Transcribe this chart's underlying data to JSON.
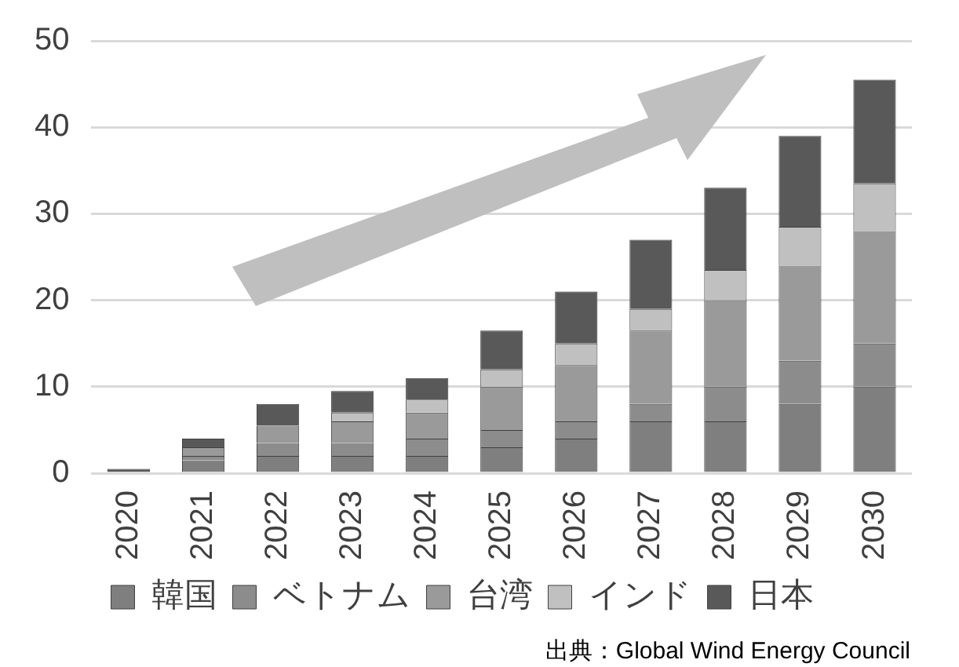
{
  "chart_data": {
    "type": "bar",
    "stacked": true,
    "categories": [
      "2020",
      "2021",
      "2022",
      "2023",
      "2024",
      "2025",
      "2026",
      "2027",
      "2028",
      "2029",
      "2030"
    ],
    "series": [
      {
        "name": "韓国",
        "color": "#7f7f7f",
        "values": [
          0,
          1.5,
          2,
          2,
          2,
          3,
          4,
          6,
          6,
          8,
          10
        ]
      },
      {
        "name": "ベトナム",
        "color": "#8c8c8c",
        "values": [
          0,
          0.5,
          1.5,
          1.5,
          2,
          2,
          2,
          2,
          4,
          5,
          5
        ]
      },
      {
        "name": "台湾",
        "color": "#9a9a9a",
        "values": [
          0,
          1,
          2,
          2.5,
          3,
          5,
          6.5,
          8.5,
          10,
          11,
          13
        ]
      },
      {
        "name": "インド",
        "color": "#c0c0c0",
        "values": [
          0,
          0,
          0,
          1,
          1.5,
          2,
          2.5,
          2.5,
          3.5,
          4.5,
          5.5
        ]
      },
      {
        "name": "日本",
        "color": "#595959",
        "values": [
          0.5,
          1,
          2.5,
          2.5,
          2.5,
          4.5,
          6,
          8,
          9.5,
          10.5,
          12
        ]
      }
    ],
    "ylim": [
      0,
      50
    ],
    "yticks": [
      0,
      10,
      20,
      30,
      40,
      50
    ],
    "grid": "y",
    "legend": "bottom",
    "annotations": [
      "出典：Global Wind Energy Council"
    ]
  }
}
